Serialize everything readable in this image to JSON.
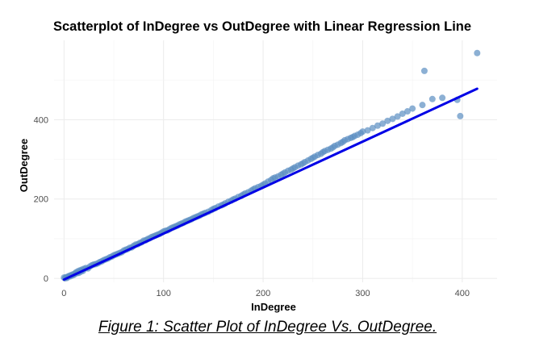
{
  "caption": "Figure 1: Scatter Plot of InDegree Vs. OutDegree.",
  "chart_data": {
    "type": "scatter",
    "title": "Scatterplot of InDegree vs OutDegree with Linear Regression Line",
    "xlabel": "InDegree",
    "ylabel": "OutDegree",
    "xlim": [
      -10,
      435
    ],
    "ylim": [
      -10,
      600
    ],
    "x_ticks": [
      0,
      100,
      200,
      300,
      400
    ],
    "y_ticks": [
      0,
      200,
      400
    ],
    "grid": true,
    "point_color": "#5b8fc2",
    "line_color": "#0000e6",
    "regression_line": {
      "x": [
        0,
        415
      ],
      "y": [
        -3,
        478
      ]
    },
    "points": {
      "x": [
        0,
        1,
        2,
        3,
        4,
        5,
        6,
        7,
        8,
        9,
        10,
        11,
        12,
        13,
        14,
        15,
        16,
        17,
        18,
        19,
        20,
        22,
        24,
        26,
        28,
        30,
        32,
        34,
        36,
        38,
        40,
        42,
        44,
        46,
        48,
        50,
        52,
        54,
        56,
        58,
        60,
        62,
        64,
        66,
        68,
        70,
        72,
        74,
        76,
        78,
        80,
        82,
        84,
        86,
        88,
        90,
        92,
        94,
        96,
        98,
        100,
        102,
        104,
        106,
        108,
        110,
        112,
        114,
        116,
        118,
        120,
        122,
        124,
        126,
        128,
        130,
        132,
        134,
        136,
        138,
        140,
        142,
        145,
        148,
        150,
        152,
        155,
        158,
        160,
        162,
        165,
        168,
        170,
        172,
        175,
        178,
        180,
        182,
        185,
        188,
        190,
        192,
        195,
        198,
        200,
        202,
        205,
        208,
        210,
        212,
        215,
        218,
        220,
        222,
        225,
        228,
        230,
        232,
        235,
        238,
        240,
        242,
        245,
        248,
        250,
        252,
        255,
        258,
        260,
        262,
        265,
        268,
        270,
        272,
        275,
        278,
        280,
        282,
        285,
        288,
        290,
        292,
        295,
        298,
        300,
        305,
        310,
        315,
        320,
        325,
        330,
        335,
        340,
        345,
        350,
        360,
        362,
        370,
        380,
        395,
        398,
        415
      ],
      "y": [
        2,
        0,
        3,
        1,
        4,
        6,
        5,
        8,
        7,
        10,
        9,
        12,
        15,
        13,
        18,
        14,
        20,
        17,
        22,
        19,
        24,
        26,
        25,
        30,
        33,
        35,
        36,
        38,
        41,
        43,
        46,
        48,
        50,
        53,
        55,
        58,
        60,
        62,
        64,
        66,
        70,
        72,
        74,
        77,
        78,
        82,
        85,
        86,
        89,
        91,
        95,
        96,
        99,
        101,
        104,
        106,
        108,
        110,
        112,
        115,
        118,
        120,
        121,
        124,
        127,
        129,
        131,
        133,
        136,
        138,
        140,
        143,
        145,
        147,
        149,
        152,
        154,
        156,
        158,
        161,
        163,
        165,
        168,
        172,
        175,
        177,
        181,
        184,
        186,
        189,
        193,
        196,
        199,
        201,
        205,
        208,
        211,
        214,
        217,
        221,
        224,
        227,
        230,
        233,
        236,
        239,
        244,
        248,
        252,
        254,
        257,
        261,
        264,
        267,
        271,
        274,
        277,
        280,
        284,
        287,
        290,
        293,
        297,
        301,
        304,
        307,
        311,
        314,
        318,
        321,
        324,
        327,
        330,
        334,
        337,
        341,
        344,
        348,
        351,
        354,
        356,
        359,
        362,
        366,
        370,
        373,
        379,
        385,
        390,
        397,
        402,
        408,
        415,
        421,
        428,
        437,
        523,
        452,
        455,
        450,
        409,
        568
      ]
    }
  }
}
